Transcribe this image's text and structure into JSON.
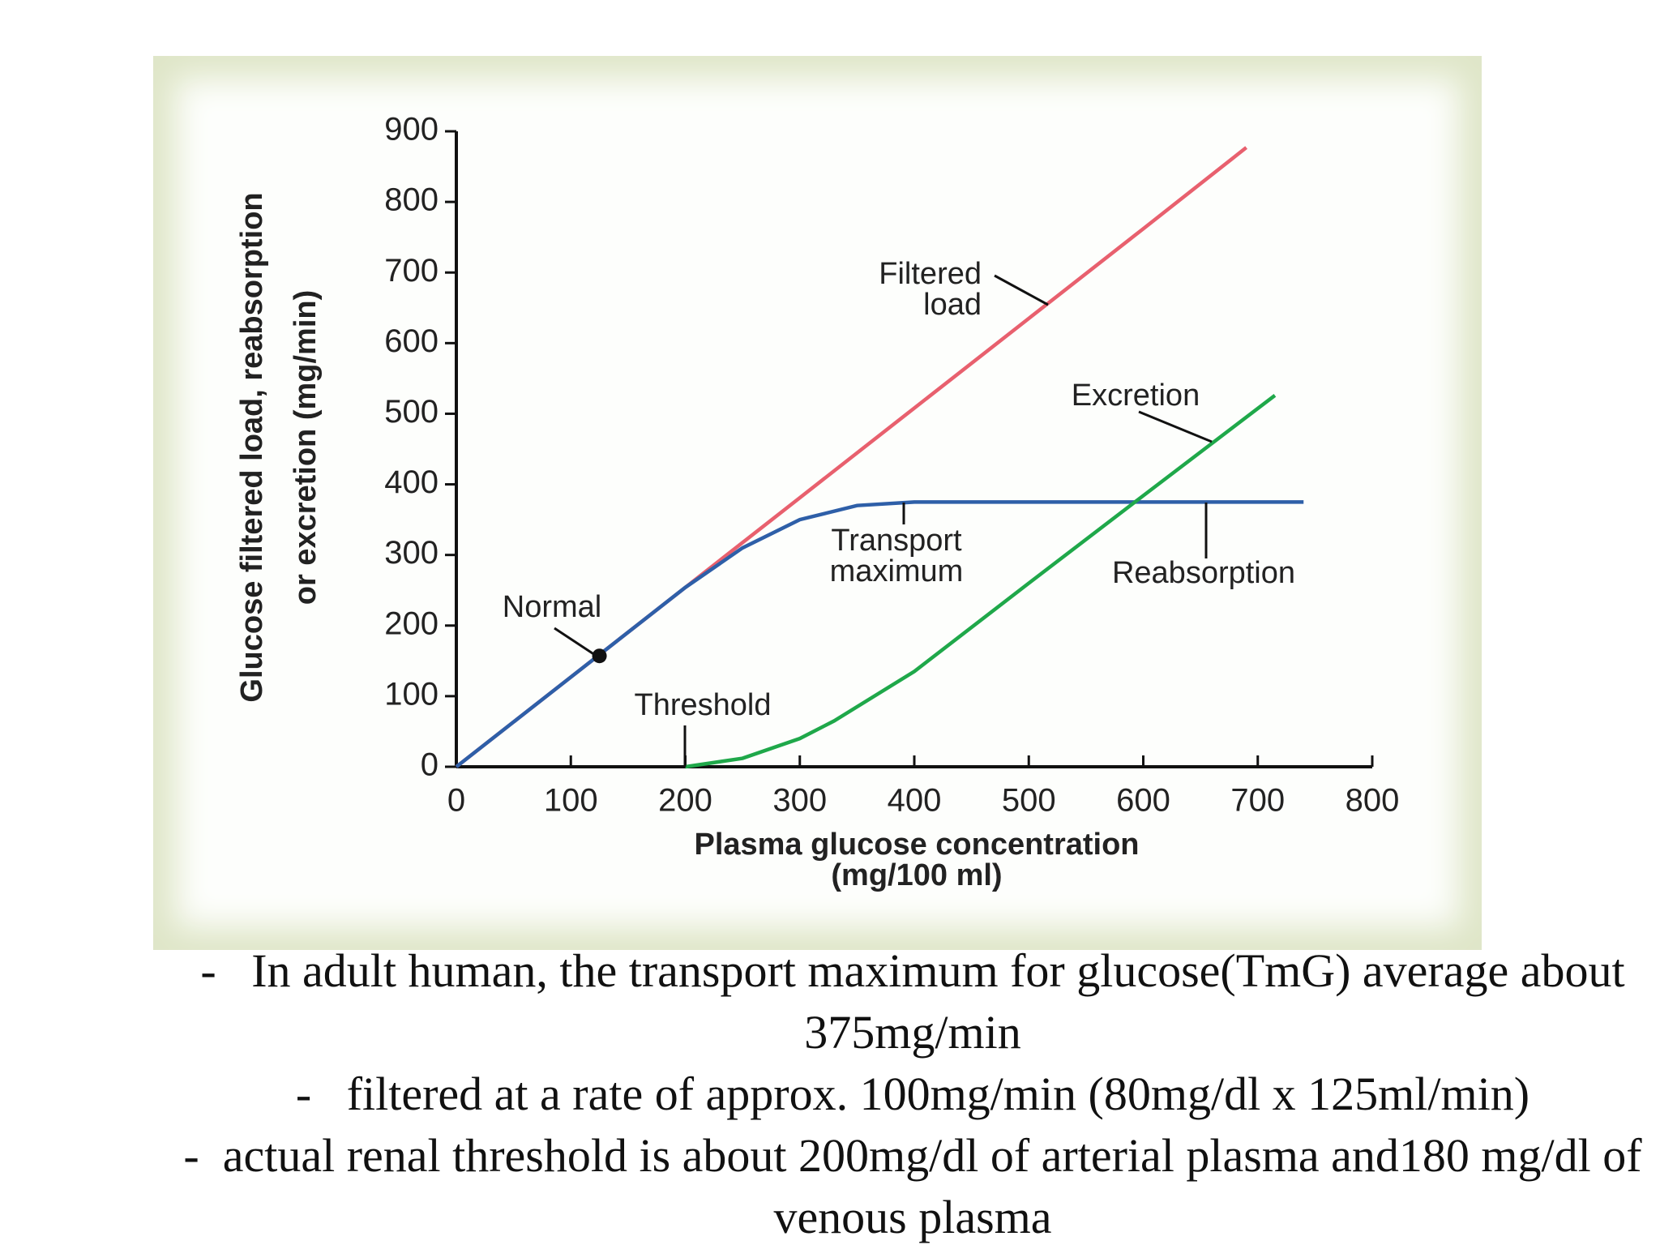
{
  "chart_data": {
    "type": "line",
    "xlabel": [
      "Plasma glucose concentration",
      "(mg/100 ml)"
    ],
    "ylabel": [
      "Glucose filtered load, reabsorption",
      "or excretion (mg/min)"
    ],
    "xlim": [
      0,
      800
    ],
    "xticks": [
      0,
      100,
      200,
      300,
      400,
      500,
      600,
      700,
      800
    ],
    "ylim": [
      0,
      900
    ],
    "yticks": [
      0,
      100,
      200,
      300,
      400,
      500,
      600,
      700,
      800,
      900
    ],
    "series": [
      {
        "name": "Filtered load",
        "color": "#e8606e",
        "x": [
          0,
          100,
          200,
          300,
          400,
          500,
          600,
          690
        ],
        "values": [
          0,
          127,
          254,
          381,
          508,
          635,
          762,
          877
        ]
      },
      {
        "name": "Reabsorption",
        "color": "#2e5fa8",
        "x": [
          0,
          100,
          200,
          250,
          300,
          350,
          400,
          740
        ],
        "values": [
          0,
          127,
          254,
          310,
          350,
          370,
          375,
          375
        ]
      },
      {
        "name": "Excretion",
        "color": "#1fa84a",
        "x": [
          200,
          250,
          300,
          330,
          400,
          500,
          600,
          715
        ],
        "values": [
          0,
          12,
          40,
          65,
          135,
          260,
          384,
          526
        ]
      }
    ],
    "annotations": [
      {
        "text": [
          "Filtered",
          "load"
        ]
      },
      {
        "text": [
          "Excretion"
        ]
      },
      {
        "text": [
          "Transport",
          "maximum"
        ]
      },
      {
        "text": [
          "Reabsorption"
        ]
      },
      {
        "text": [
          "Normal"
        ],
        "x": 125,
        "y": 157
      },
      {
        "text": [
          "Threshold"
        ]
      }
    ]
  },
  "bullets": [
    "-   In adult human, the transport maximum for glucose(TmG) average about 375mg/min",
    "-   filtered at a rate of approx. 100mg/min (80mg/dl x 125ml/min)",
    "-  actual renal threshold is about 200mg/dl of arterial plasma and180 mg/dl of venous plasma"
  ]
}
